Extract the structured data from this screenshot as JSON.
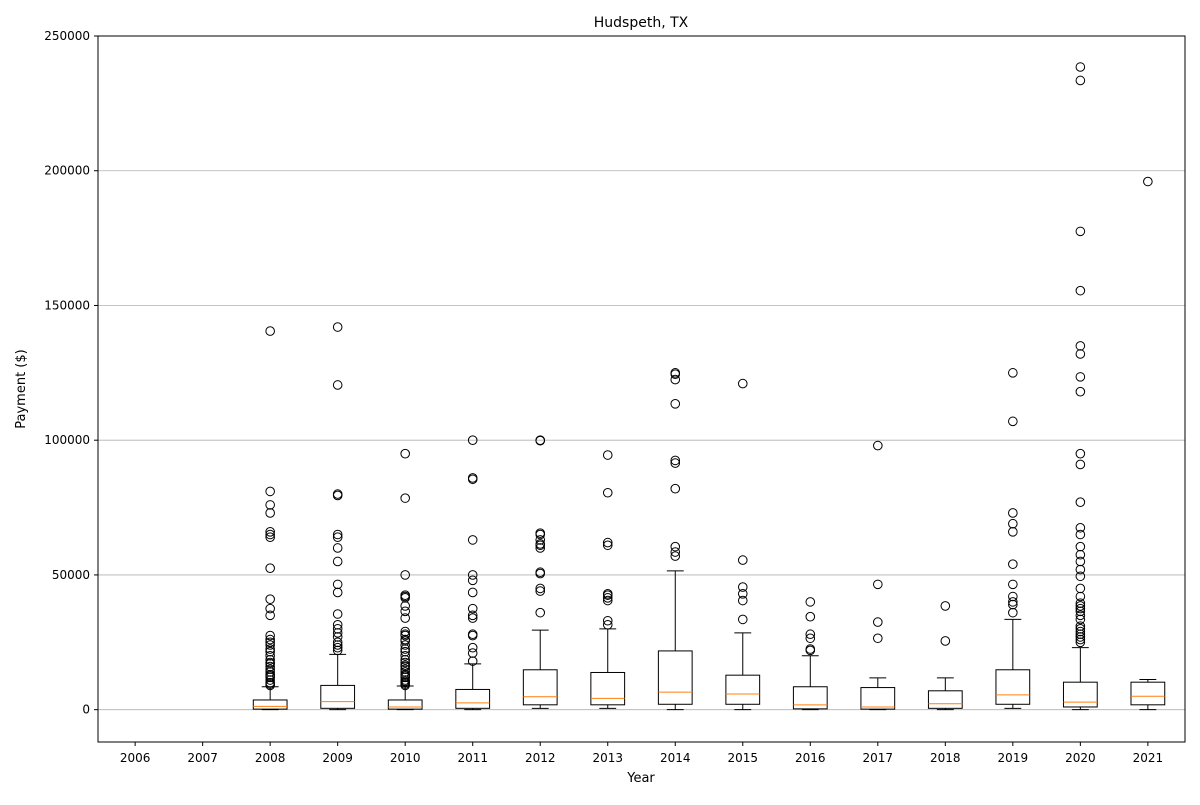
{
  "chart_data": {
    "type": "box",
    "title": "Hudspeth, TX",
    "xlabel": "Year",
    "ylabel": "Payment ($)",
    "ylim": [
      -12000,
      250000
    ],
    "yticks": [
      0,
      50000,
      100000,
      150000,
      200000,
      250000
    ],
    "grid": "y",
    "categories": [
      "2006",
      "2007",
      "2008",
      "2009",
      "2010",
      "2011",
      "2012",
      "2013",
      "2014",
      "2015",
      "2016",
      "2017",
      "2018",
      "2019",
      "2020",
      "2021"
    ],
    "boxes": [
      null,
      null,
      {
        "whisker_low": 0,
        "q1": 200,
        "median": 1200,
        "q3": 3600,
        "whisker_high": 8500,
        "outliers": [
          140500,
          81000,
          76000,
          73000,
          66000,
          65000,
          64000,
          52500,
          41000,
          37500,
          35000,
          27500,
          26000,
          25000,
          24000,
          22500,
          21500,
          20000,
          18500,
          17500,
          17000,
          16000,
          15000,
          14000,
          13000,
          12500,
          12000,
          11000,
          10000,
          9500,
          9000
        ]
      },
      {
        "whisker_low": 0,
        "q1": 500,
        "median": 3000,
        "q3": 9000,
        "whisker_high": 20500,
        "outliers": [
          142000,
          120500,
          80000,
          79500,
          65000,
          64000,
          60000,
          55000,
          46500,
          43500,
          35500,
          31500,
          30000,
          28500,
          27000,
          25000,
          24000,
          23000,
          22000
        ]
      },
      {
        "whisker_low": 0,
        "q1": 200,
        "median": 1000,
        "q3": 3600,
        "whisker_high": 8800,
        "outliers": [
          95000,
          78500,
          50000,
          42500,
          42000,
          41500,
          38500,
          36500,
          34000,
          29000,
          28000,
          27500,
          26000,
          25500,
          24000,
          22500,
          21500,
          20000,
          18500,
          17500,
          16500,
          16000,
          15000,
          14000,
          13000,
          12500,
          12000,
          11000,
          10500,
          10000,
          9500,
          9000
        ]
      },
      {
        "whisker_low": 0,
        "q1": 500,
        "median": 2500,
        "q3": 7500,
        "whisker_high": 17000,
        "outliers": [
          100000,
          86000,
          85500,
          63000,
          50000,
          48000,
          43500,
          37500,
          35000,
          34000,
          28000,
          27500,
          23000,
          21000,
          18000
        ]
      },
      {
        "whisker_low": 500,
        "q1": 1800,
        "median": 4800,
        "q3": 14800,
        "whisker_high": 29500,
        "outliers": [
          100000,
          99800,
          65500,
          65000,
          63000,
          61500,
          61000,
          60000,
          51000,
          50500,
          45000,
          44000,
          36000
        ]
      },
      {
        "whisker_low": 500,
        "q1": 1800,
        "median": 4200,
        "q3": 13800,
        "whisker_high": 30000,
        "outliers": [
          94500,
          80500,
          62000,
          61000,
          43000,
          42500,
          41500,
          40500,
          33000,
          31500
        ]
      },
      {
        "whisker_low": 0,
        "q1": 2000,
        "median": 6500,
        "q3": 21800,
        "whisker_high": 51500,
        "outliers": [
          125000,
          124500,
          122500,
          113500,
          92500,
          91500,
          82000,
          60500,
          58500,
          57000
        ]
      },
      {
        "whisker_low": 0,
        "q1": 2000,
        "median": 5800,
        "q3": 12800,
        "whisker_high": 28500,
        "outliers": [
          121000,
          55500,
          45500,
          43000,
          40500,
          33500
        ]
      },
      {
        "whisker_low": 0,
        "q1": 300,
        "median": 1800,
        "q3": 8500,
        "whisker_high": 20000,
        "outliers": [
          40000,
          34500,
          28000,
          26500,
          22500,
          22000
        ]
      },
      {
        "whisker_low": 0,
        "q1": 200,
        "median": 1000,
        "q3": 8200,
        "whisker_high": 11800,
        "outliers": [
          98000,
          46500,
          32500,
          26500
        ]
      },
      {
        "whisker_low": 0,
        "q1": 500,
        "median": 2200,
        "q3": 7000,
        "whisker_high": 11800,
        "outliers": [
          38500,
          25500
        ]
      },
      {
        "whisker_low": 500,
        "q1": 2000,
        "median": 5500,
        "q3": 14800,
        "whisker_high": 33500,
        "outliers": [
          125000,
          107000,
          73000,
          69000,
          66000,
          54000,
          46500,
          42000,
          40000,
          39000,
          36000
        ]
      },
      {
        "whisker_low": 0,
        "q1": 1000,
        "median": 2800,
        "q3": 10200,
        "whisker_high": 23000,
        "outliers": [
          238500,
          233500,
          177500,
          155500,
          135000,
          132000,
          123500,
          118000,
          95000,
          91000,
          77000,
          67500,
          65000,
          60500,
          57500,
          55000,
          52000,
          49500,
          45000,
          42000,
          39500,
          38500,
          37500,
          36500,
          35000,
          33500,
          31000,
          30000,
          29000,
          28000,
          27000,
          26000,
          25000
        ]
      },
      {
        "whisker_low": 0,
        "q1": 1800,
        "median": 5000,
        "q3": 10200,
        "whisker_high": 11200,
        "outliers": [
          196000
        ]
      }
    ],
    "colors": {
      "box": "#000000",
      "median": "#ff7f0e",
      "grid": "#b0b0b0"
    }
  }
}
